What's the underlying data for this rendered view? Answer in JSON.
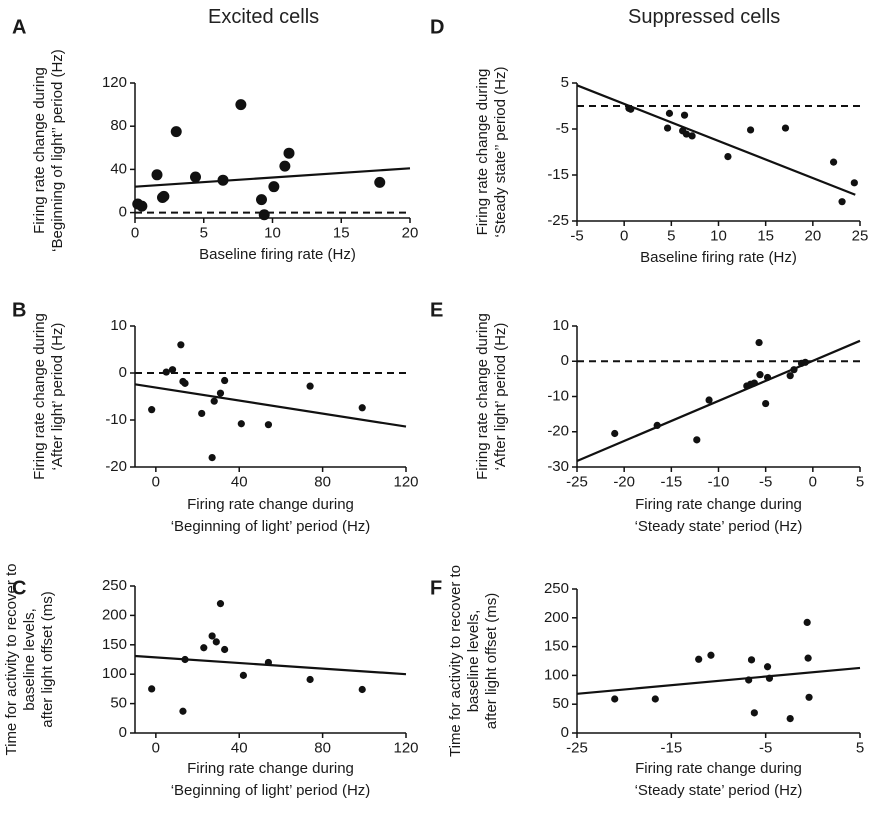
{
  "column_titles": {
    "left": "Excited cells",
    "right": "Suppressed cells"
  },
  "chart_data": [
    {
      "id": "A",
      "panel_label": "A",
      "type": "scatter",
      "xlabel": [
        "Baseline firing rate (Hz)"
      ],
      "ylabel": [
        "Firing rate change during",
        "‘Beginning of light’’ period (Hz)"
      ],
      "xlim": [
        0,
        20
      ],
      "ylim": [
        -5,
        120
      ],
      "xticks": [
        0,
        5,
        10,
        15,
        20
      ],
      "yticks": [
        0,
        40,
        80,
        120
      ],
      "marker_size": "large",
      "points": [
        [
          0.2,
          8
        ],
        [
          0.5,
          6
        ],
        [
          1.6,
          35
        ],
        [
          2.0,
          14
        ],
        [
          2.1,
          15
        ],
        [
          3.0,
          75
        ],
        [
          4.4,
          33
        ],
        [
          6.4,
          30
        ],
        [
          7.7,
          100
        ],
        [
          9.2,
          12
        ],
        [
          9.4,
          -2
        ],
        [
          10.1,
          24
        ],
        [
          10.9,
          43
        ],
        [
          11.2,
          55
        ],
        [
          17.8,
          28
        ]
      ],
      "fit_line": [
        [
          0,
          24
        ],
        [
          20,
          41
        ]
      ],
      "zero_line": 0
    },
    {
      "id": "D",
      "panel_label": "D",
      "type": "scatter",
      "xlabel": [
        "Baseline firing rate (Hz)"
      ],
      "ylabel": [
        "Firing rate change during",
        "‘Steady state’’ period (Hz)"
      ],
      "xlim": [
        -5,
        25
      ],
      "ylim": [
        -25,
        5
      ],
      "xticks": [
        -5,
        0,
        5,
        10,
        15,
        20,
        25
      ],
      "yticks": [
        5,
        -5,
        -15,
        -25
      ],
      "marker_size": "small",
      "points": [
        [
          0.5,
          -0.5
        ],
        [
          0.7,
          -0.7
        ],
        [
          4.6,
          -4.8
        ],
        [
          4.8,
          -1.6
        ],
        [
          6.2,
          -5.4
        ],
        [
          6.4,
          -2.0
        ],
        [
          6.6,
          -6.1
        ],
        [
          7.2,
          -6.5
        ],
        [
          11.0,
          -11.0
        ],
        [
          13.4,
          -5.2
        ],
        [
          17.1,
          -4.8
        ],
        [
          22.2,
          -12.2
        ],
        [
          23.1,
          -20.8
        ],
        [
          24.4,
          -16.7
        ]
      ],
      "fit_line": [
        [
          -5,
          4.5
        ],
        [
          24.5,
          -19.3
        ]
      ],
      "zero_line": 0
    },
    {
      "id": "B",
      "panel_label": "B",
      "type": "scatter",
      "xlabel": [
        "Firing rate change during",
        "‘Beginning of light’ period (Hz)"
      ],
      "ylabel": [
        "Firing rate change during",
        "‘After light’ period (Hz)"
      ],
      "xlim": [
        -10,
        120
      ],
      "ylim": [
        -20,
        10
      ],
      "xticks": [
        0,
        40,
        80,
        120
      ],
      "yticks": [
        10,
        0,
        -10,
        -20
      ],
      "marker_size": "small",
      "points": [
        [
          -2,
          -7.8
        ],
        [
          5,
          0.2
        ],
        [
          8,
          0.7
        ],
        [
          12,
          6.0
        ],
        [
          13,
          -1.8
        ],
        [
          14,
          -2.2
        ],
        [
          22,
          -8.6
        ],
        [
          27,
          -18.0
        ],
        [
          28,
          -6.0
        ],
        [
          31,
          -4.3
        ],
        [
          33,
          -1.6
        ],
        [
          41,
          -10.8
        ],
        [
          54,
          -11.0
        ],
        [
          74,
          -2.8
        ],
        [
          99,
          -7.4
        ]
      ],
      "fit_line": [
        [
          -10,
          -2.4
        ],
        [
          120,
          -11.4
        ]
      ],
      "zero_line": 0
    },
    {
      "id": "E",
      "panel_label": "E",
      "type": "scatter",
      "xlabel": [
        "Firing rate change during",
        "‘Steady state’ period (Hz)"
      ],
      "ylabel": [
        "Firing rate change during",
        "‘After light’ period (Hz)"
      ],
      "xlim": [
        -25,
        5
      ],
      "ylim": [
        -30,
        10
      ],
      "xticks": [
        -25,
        -20,
        -15,
        -10,
        -5,
        0,
        5
      ],
      "yticks": [
        10,
        0,
        -10,
        -20,
        -30
      ],
      "marker_size": "small",
      "points": [
        [
          -21,
          -20.5
        ],
        [
          -16.5,
          -18.2
        ],
        [
          -12.3,
          -22.3
        ],
        [
          -11,
          -11.0
        ],
        [
          -7.0,
          -7.0
        ],
        [
          -6.6,
          -6.5
        ],
        [
          -6.2,
          -6.2
        ],
        [
          -5.7,
          5.3
        ],
        [
          -5.6,
          -3.8
        ],
        [
          -5.0,
          -12.0
        ],
        [
          -4.8,
          -4.6
        ],
        [
          -2.4,
          -4.1
        ],
        [
          -2.0,
          -2.4
        ],
        [
          -1.2,
          -0.6
        ],
        [
          -0.8,
          -0.3
        ]
      ],
      "fit_line": [
        [
          -25,
          -28.3
        ],
        [
          5,
          5.8
        ]
      ],
      "zero_line": 0
    },
    {
      "id": "C",
      "panel_label": "C",
      "type": "scatter",
      "xlabel": [
        "Firing rate change during",
        "‘Beginning of light’ period (Hz)"
      ],
      "ylabel": [
        "Time for activity to recover to",
        "baseline levels,",
        "after light offset (ms)"
      ],
      "xlim": [
        -10,
        120
      ],
      "ylim": [
        0,
        250
      ],
      "xticks": [
        0,
        40,
        80,
        120
      ],
      "yticks": [
        0,
        50,
        100,
        150,
        200,
        250
      ],
      "marker_size": "small",
      "points": [
        [
          -2,
          75
        ],
        [
          13,
          37
        ],
        [
          14,
          125
        ],
        [
          23,
          145
        ],
        [
          27,
          165
        ],
        [
          29,
          155
        ],
        [
          31,
          220
        ],
        [
          33,
          142
        ],
        [
          42,
          98
        ],
        [
          54,
          120
        ],
        [
          74,
          91
        ],
        [
          99,
          74
        ]
      ],
      "fit_line": [
        [
          -10,
          131
        ],
        [
          120,
          100
        ]
      ]
    },
    {
      "id": "F",
      "panel_label": "F",
      "type": "scatter",
      "xlabel": [
        "Firing rate change during",
        "‘Steady state’ period (Hz)"
      ],
      "ylabel": [
        "Time for activity to recover to",
        "baseline levels,",
        "after light offset (ms)"
      ],
      "xlim": [
        -25,
        5
      ],
      "ylim": [
        0,
        250
      ],
      "xticks": [
        -25,
        -15,
        -5,
        5
      ],
      "yticks": [
        0,
        50,
        100,
        150,
        200,
        250
      ],
      "xtick_labels": [
        "-25",
        "-15",
        "-5",
        "5"
      ],
      "marker_size": "small",
      "points": [
        [
          -21,
          59
        ],
        [
          -16.7,
          59
        ],
        [
          -12.1,
          128
        ],
        [
          -10.8,
          135
        ],
        [
          -6.8,
          92
        ],
        [
          -6.5,
          127
        ],
        [
          -6.2,
          35
        ],
        [
          -4.8,
          115
        ],
        [
          -4.6,
          95
        ],
        [
          -2.4,
          25
        ],
        [
          -0.6,
          192
        ],
        [
          -0.5,
          130
        ],
        [
          -0.4,
          62
        ]
      ],
      "fit_line": [
        [
          -25,
          68
        ],
        [
          5,
          113
        ]
      ]
    }
  ]
}
